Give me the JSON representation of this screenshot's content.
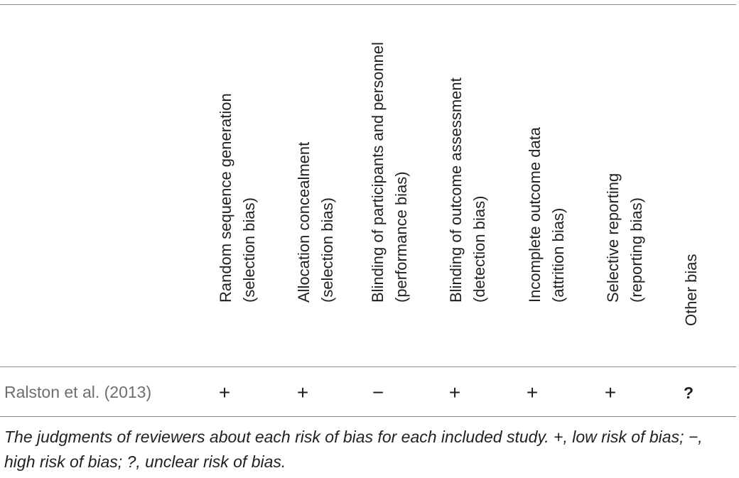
{
  "table": {
    "columns": [
      {
        "line1": "Random sequence generation",
        "line2": "(selection bias)"
      },
      {
        "line1": "Allocation concealment",
        "line2": "(selection bias)"
      },
      {
        "line1": "Blinding of participants and personnel",
        "line2": "(performance bias)"
      },
      {
        "line1": "Blinding of outcome assessment",
        "line2": "(detection bias)"
      },
      {
        "line1": "Incomplete outcome data",
        "line2": "(attrition bias)"
      },
      {
        "line1": "Selective reporting",
        "line2": "(reporting bias)"
      },
      {
        "line1": "Other bias",
        "line2": ""
      }
    ],
    "rows": [
      {
        "study": "Ralston et al. (2013)",
        "judgments": [
          "+",
          "+",
          "−",
          "+",
          "+",
          "+",
          "?"
        ]
      }
    ]
  },
  "caption": "The judgments of reviewers about each risk of bias for each included study. +, low risk of bias; −, high risk of bias; ?, unclear risk of bias."
}
